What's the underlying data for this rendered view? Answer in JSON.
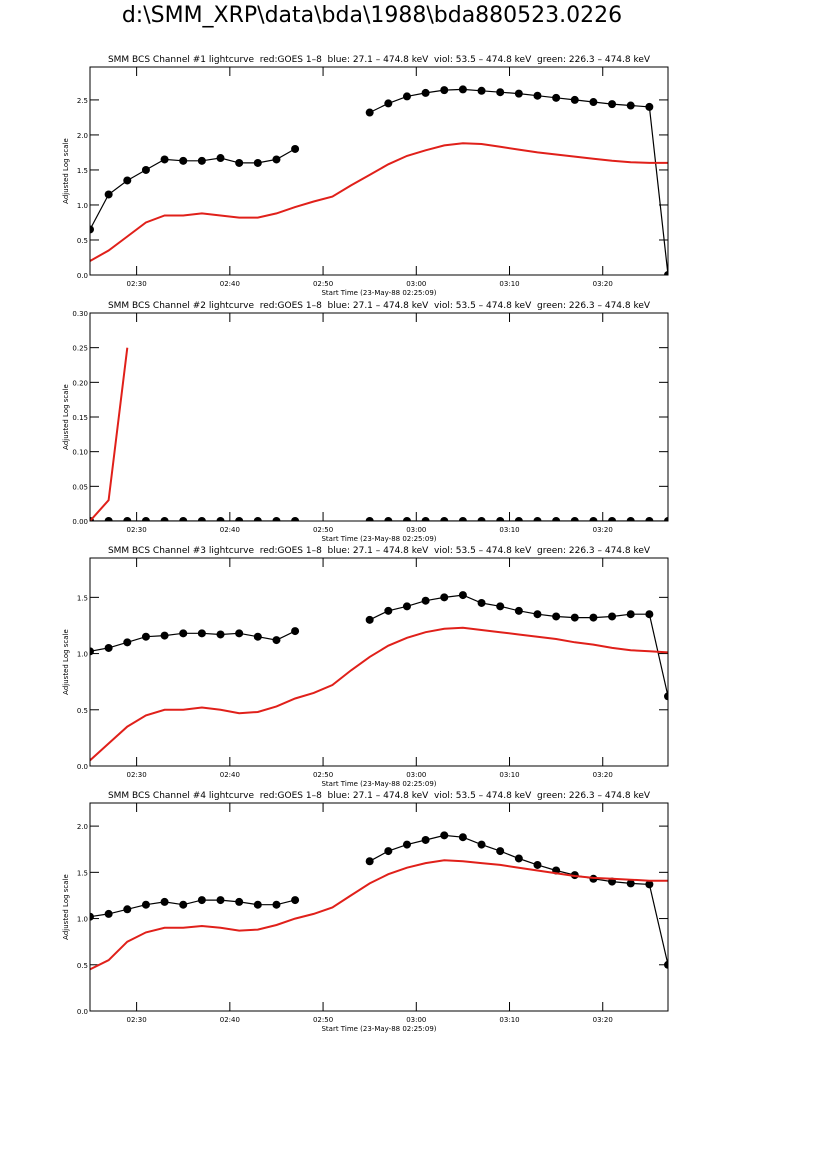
{
  "title": "d:\\SMM_XRP\\data\\bda\\1988\\bda880523.0226",
  "chart_data": [
    {
      "type": "line",
      "title": "SMM BCS Channel #1 lightcurve  red:GOES 1–8  blue: 27.1 – 474.8 keV  viol: 53.5 – 474.8 keV  green: 226.3 – 474.8 keV",
      "xlabel": "Start Time (23-May-88 02:25:09)",
      "ylabel": "Adjusted Log scale",
      "x": [
        "02:25",
        "02:27",
        "02:29",
        "02:31",
        "02:33",
        "02:35",
        "02:37",
        "02:39",
        "02:41",
        "02:43",
        "02:45",
        "02:47",
        "02:49",
        "02:51",
        "02:53",
        "02:55",
        "02:57",
        "02:59",
        "03:01",
        "03:03",
        "03:05",
        "03:07",
        "03:09",
        "03:11",
        "03:13",
        "03:15",
        "03:17",
        "03:19",
        "03:21",
        "03:23",
        "03:25",
        "03:27"
      ],
      "xlim": [
        "02:25",
        "03:27"
      ],
      "xticks": [
        "02:30",
        "02:40",
        "02:50",
        "03:00",
        "03:10",
        "03:20"
      ],
      "ylim": [
        0,
        2.97
      ],
      "yticks": [
        {
          "value": 0,
          "label": "0.0"
        },
        0.5,
        {
          "value": 1,
          "label": "1.0"
        },
        1.5,
        {
          "value": 2,
          "label": "2.0"
        },
        2.5
      ],
      "series": [
        {
          "color": "#000000",
          "marker": "circle",
          "values": [
            0.65,
            1.15,
            1.35,
            1.5,
            1.65,
            1.63,
            1.63,
            1.67,
            1.6,
            1.6,
            1.65,
            1.8,
            null,
            null,
            null,
            2.32,
            2.45,
            2.55,
            2.6,
            2.64,
            2.65,
            2.63,
            2.61,
            2.59,
            2.56,
            2.53,
            2.5,
            2.47,
            2.44,
            2.42,
            2.4,
            0.0
          ]
        },
        {
          "color": "#e0201a",
          "values": [
            0.2,
            0.35,
            0.55,
            0.75,
            0.85,
            0.85,
            0.88,
            0.85,
            0.82,
            0.82,
            0.88,
            0.97,
            1.05,
            1.12,
            1.28,
            1.43,
            1.58,
            1.7,
            1.78,
            1.85,
            1.88,
            1.87,
            1.83,
            1.79,
            1.75,
            1.72,
            1.69,
            1.66,
            1.63,
            1.61,
            1.6,
            1.6
          ]
        }
      ]
    },
    {
      "type": "line",
      "title": "SMM BCS Channel #2 lightcurve  red:GOES 1–8  blue: 27.1 – 474.8 keV  viol: 53.5 – 474.8 keV  green: 226.3 – 474.8 keV",
      "xlabel": "Start Time (23-May-88 02:25:09)",
      "ylabel": "Adjusted Log scale",
      "x": [
        "02:25",
        "02:27",
        "02:29",
        "02:31",
        "02:33",
        "02:35",
        "02:37",
        "02:39",
        "02:41",
        "02:43",
        "02:45",
        "02:47",
        "02:49",
        "02:51",
        "02:53",
        "02:55",
        "02:57",
        "02:59",
        "03:01",
        "03:03",
        "03:05",
        "03:07",
        "03:09",
        "03:11",
        "03:13",
        "03:15",
        "03:17",
        "03:19",
        "03:21",
        "03:23",
        "03:25",
        "03:27"
      ],
      "xlim": [
        "02:25",
        "03:27"
      ],
      "xticks": [
        "02:30",
        "02:40",
        "02:50",
        "03:00",
        "03:10",
        "03:20"
      ],
      "ylim": [
        0,
        0.3
      ],
      "yticks": [
        {
          "value": 0,
          "label": "0.00"
        },
        0.05,
        {
          "value": 0.1,
          "label": "0.10"
        },
        0.15,
        {
          "value": 0.2,
          "label": "0.20"
        },
        0.25,
        {
          "value": 0.3,
          "label": "0.30"
        }
      ],
      "series": [
        {
          "color": "#000000",
          "marker": "circle",
          "values": [
            0,
            0,
            0,
            0,
            0,
            0,
            0,
            0,
            0,
            0,
            0,
            0,
            null,
            null,
            null,
            0,
            0,
            0,
            0,
            0,
            0,
            0,
            0,
            0,
            0,
            0,
            0,
            0,
            0,
            0,
            0,
            0
          ]
        },
        {
          "color": "#e0201a",
          "values": [
            0,
            0.03,
            0.25,
            null,
            null,
            null,
            null,
            null,
            null,
            null,
            null,
            null,
            null,
            null,
            null,
            null,
            null,
            null,
            null,
            null,
            null,
            null,
            null,
            null,
            null,
            null,
            null,
            null,
            null,
            null,
            null,
            null
          ]
        }
      ]
    },
    {
      "type": "line",
      "title": "SMM BCS Channel #3 lightcurve  red:GOES 1–8  blue: 27.1 – 474.8 keV  viol: 53.5 – 474.8 keV  green: 226.3 – 474.8 keV",
      "xlabel": "Start Time (23-May-88 02:25:09)",
      "ylabel": "Adjusted Log scale",
      "x": [
        "02:25",
        "02:27",
        "02:29",
        "02:31",
        "02:33",
        "02:35",
        "02:37",
        "02:39",
        "02:41",
        "02:43",
        "02:45",
        "02:47",
        "02:49",
        "02:51",
        "02:53",
        "02:55",
        "02:57",
        "02:59",
        "03:01",
        "03:03",
        "03:05",
        "03:07",
        "03:09",
        "03:11",
        "03:13",
        "03:15",
        "03:17",
        "03:19",
        "03:21",
        "03:23",
        "03:25",
        "03:27"
      ],
      "xlim": [
        "02:25",
        "03:27"
      ],
      "xticks": [
        "02:30",
        "02:40",
        "02:50",
        "03:00",
        "03:10",
        "03:20"
      ],
      "ylim": [
        0,
        1.85
      ],
      "yticks": [
        {
          "value": 0,
          "label": "0.0"
        },
        0.5,
        {
          "value": 1,
          "label": "1.0"
        },
        1.5
      ],
      "series": [
        {
          "color": "#000000",
          "marker": "circle",
          "values": [
            1.02,
            1.05,
            1.1,
            1.15,
            1.16,
            1.18,
            1.18,
            1.17,
            1.18,
            1.15,
            1.12,
            1.2,
            null,
            null,
            null,
            1.3,
            1.38,
            1.42,
            1.47,
            1.5,
            1.52,
            1.45,
            1.42,
            1.38,
            1.35,
            1.33,
            1.32,
            1.32,
            1.33,
            1.35,
            1.35,
            0.62
          ]
        },
        {
          "color": "#e0201a",
          "values": [
            0.05,
            0.2,
            0.35,
            0.45,
            0.5,
            0.5,
            0.52,
            0.5,
            0.47,
            0.48,
            0.53,
            0.6,
            0.65,
            0.72,
            0.85,
            0.97,
            1.07,
            1.14,
            1.19,
            1.22,
            1.23,
            1.21,
            1.19,
            1.17,
            1.15,
            1.13,
            1.1,
            1.08,
            1.05,
            1.03,
            1.02,
            1.01
          ]
        }
      ]
    },
    {
      "type": "line",
      "title": "SMM BCS Channel #4 lightcurve  red:GOES 1–8  blue: 27.1 – 474.8 keV  viol: 53.5 – 474.8 keV  green: 226.3 – 474.8 keV",
      "xlabel": "Start Time (23-May-88 02:25:09)",
      "ylabel": "Adjusted Log scale",
      "x": [
        "02:25",
        "02:27",
        "02:29",
        "02:31",
        "02:33",
        "02:35",
        "02:37",
        "02:39",
        "02:41",
        "02:43",
        "02:45",
        "02:47",
        "02:49",
        "02:51",
        "02:53",
        "02:55",
        "02:57",
        "02:59",
        "03:01",
        "03:03",
        "03:05",
        "03:07",
        "03:09",
        "03:11",
        "03:13",
        "03:15",
        "03:17",
        "03:19",
        "03:21",
        "03:23",
        "03:25",
        "03:27"
      ],
      "xlim": [
        "02:25",
        "03:27"
      ],
      "xticks": [
        "02:30",
        "02:40",
        "02:50",
        "03:00",
        "03:10",
        "03:20"
      ],
      "ylim": [
        0,
        2.25
      ],
      "yticks": [
        {
          "value": 0,
          "label": "0.0"
        },
        0.5,
        {
          "value": 1,
          "label": "1.0"
        },
        1.5,
        {
          "value": 2,
          "label": "2.0"
        }
      ],
      "series": [
        {
          "color": "#000000",
          "marker": "circle",
          "values": [
            1.02,
            1.05,
            1.1,
            1.15,
            1.18,
            1.15,
            1.2,
            1.2,
            1.18,
            1.15,
            1.15,
            1.2,
            null,
            null,
            null,
            1.62,
            1.73,
            1.8,
            1.85,
            1.9,
            1.88,
            1.8,
            1.73,
            1.65,
            1.58,
            1.52,
            1.47,
            1.43,
            1.4,
            1.38,
            1.37,
            0.5
          ]
        },
        {
          "color": "#e0201a",
          "values": [
            0.45,
            0.55,
            0.75,
            0.85,
            0.9,
            0.9,
            0.92,
            0.9,
            0.87,
            0.88,
            0.93,
            1.0,
            1.05,
            1.12,
            1.25,
            1.38,
            1.48,
            1.55,
            1.6,
            1.63,
            1.62,
            1.6,
            1.58,
            1.55,
            1.52,
            1.49,
            1.46,
            1.44,
            1.43,
            1.42,
            1.41,
            1.41
          ]
        }
      ]
    }
  ]
}
